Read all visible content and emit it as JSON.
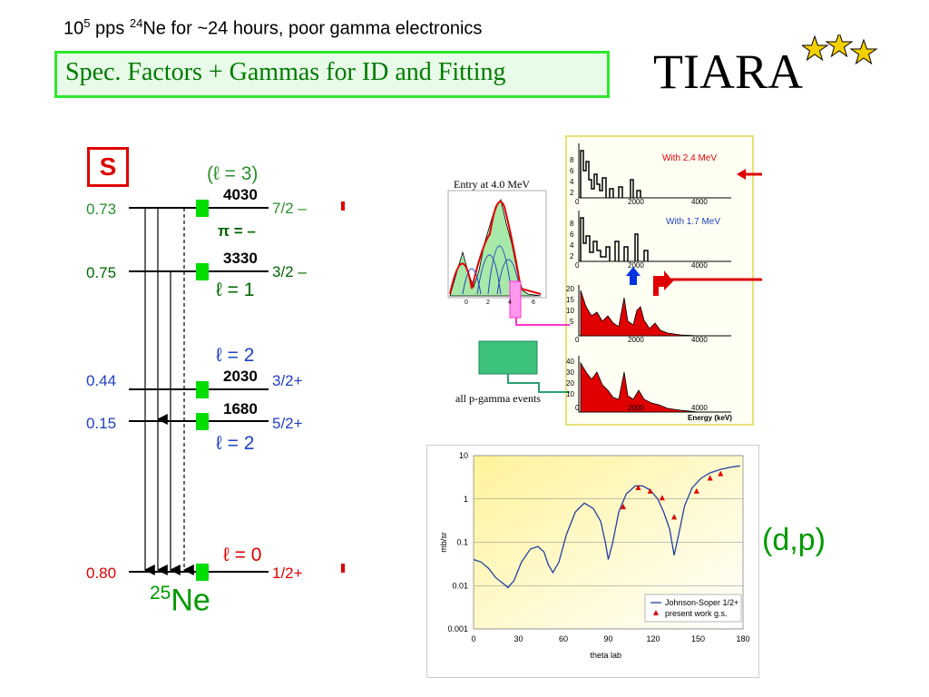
{
  "header": {
    "note": {
      "a": "10",
      "b": "5",
      "c": " pps ",
      "d": "24",
      "e": "Ne for ~24 hours, poor gamma electronics"
    },
    "subtitle": "Spec. Factors + Gammas for ID and Fitting",
    "logo_text": "TIARA"
  },
  "level_scheme": {
    "s_label": "S",
    "nucleus": {
      "mass": "25",
      "symbol": "Ne"
    },
    "top_l": "(ℓ = 3)",
    "parity": "π = –",
    "levels": [
      {
        "s": "0.73",
        "energy": "4030",
        "jpi": "7/2 –",
        "l_label": "",
        "s_color": "#2a8f2a",
        "jpi_color": "#2a8f2a"
      },
      {
        "s": "0.75",
        "energy": "3330",
        "jpi": "3/2 –",
        "l_label": "ℓ = 1",
        "s_color": "#006600",
        "jpi_color": "#006600"
      },
      {
        "s": "0.44",
        "energy": "2030",
        "jpi": "3/2+",
        "l_label": "ℓ = 2",
        "s_color": "#2040c0",
        "jpi_color": "#2040c0"
      },
      {
        "s": "0.15",
        "energy": "1680",
        "jpi": "5/2+",
        "l_label": "ℓ = 2",
        "s_color": "#2040c0",
        "jpi_color": "#2040c0"
      },
      {
        "s": "0.80",
        "energy": "",
        "jpi": "1/2+",
        "l_label": "ℓ = 0",
        "s_color": "#e00000",
        "jpi_color": "#e00000"
      }
    ]
  },
  "gamma_panel": {
    "entry_label": "Entry at 4.0 MeV",
    "all_events_label": "all p-gamma events",
    "hist_labels": [
      "With 2.4 MeV",
      "With 1.7 MeV"
    ],
    "x_ticks": [
      "0",
      "2000",
      "4000"
    ],
    "x_axis_label": "Energy (keV)",
    "y_ticks_1": [
      "8",
      "6",
      "4",
      "2",
      "0"
    ],
    "y_ticks_2": [
      "8",
      "6",
      "4",
      "2",
      "0"
    ],
    "y_ticks_3": [
      "20",
      "15",
      "10",
      "5",
      "0"
    ],
    "y_ticks_4": [
      "40",
      "30",
      "20",
      "10",
      "0"
    ],
    "entry_ticks": [
      "0",
      "2",
      "4",
      "6"
    ]
  },
  "reaction_label": "(d,p)",
  "colors": {
    "green_box": "#00cc00",
    "red_arrow": "#e00000",
    "magenta": "#ff33cc",
    "blue": "#2040c0"
  },
  "chart_data": {
    "type": "line",
    "title": "",
    "xlabel": "theta lab",
    "ylabel": "mb/sr",
    "xlim": [
      0,
      180
    ],
    "ylim": [
      0.001,
      10
    ],
    "yscale": "log",
    "x_ticks": [
      "0",
      "30",
      "60",
      "90",
      "120",
      "150",
      "180"
    ],
    "y_ticks": [
      "10",
      "1",
      "0.1",
      "0.01",
      "0.001"
    ],
    "legend_position": "bottom-right",
    "series": [
      {
        "name": "Johnson-Soper 1/2+",
        "kind": "line",
        "color": "#2040a0",
        "x": [
          0,
          5,
          10,
          15,
          20,
          23,
          27,
          32,
          38,
          43,
          47,
          50,
          53,
          57,
          62,
          68,
          74,
          80,
          85,
          88,
          90,
          93,
          97,
          102,
          108,
          113,
          118,
          123,
          127,
          131,
          134,
          137,
          141,
          146,
          152,
          158,
          165,
          172,
          178
        ],
        "y": [
          0.04,
          0.035,
          0.025,
          0.015,
          0.011,
          0.009,
          0.013,
          0.035,
          0.07,
          0.08,
          0.06,
          0.03,
          0.02,
          0.035,
          0.15,
          0.5,
          0.8,
          0.6,
          0.3,
          0.1,
          0.04,
          0.1,
          0.5,
          1.3,
          2.0,
          2.0,
          1.6,
          1.0,
          0.5,
          0.2,
          0.05,
          0.15,
          0.7,
          1.8,
          3.0,
          4.0,
          4.8,
          5.4,
          5.8
        ]
      },
      {
        "name": "present work g.s.",
        "kind": "scatter",
        "color": "#e00000",
        "x": [
          100,
          110,
          118,
          126,
          134,
          149,
          158,
          165
        ],
        "y": [
          0.65,
          1.8,
          1.5,
          1.05,
          0.38,
          1.5,
          3.0,
          3.8
        ]
      }
    ]
  }
}
